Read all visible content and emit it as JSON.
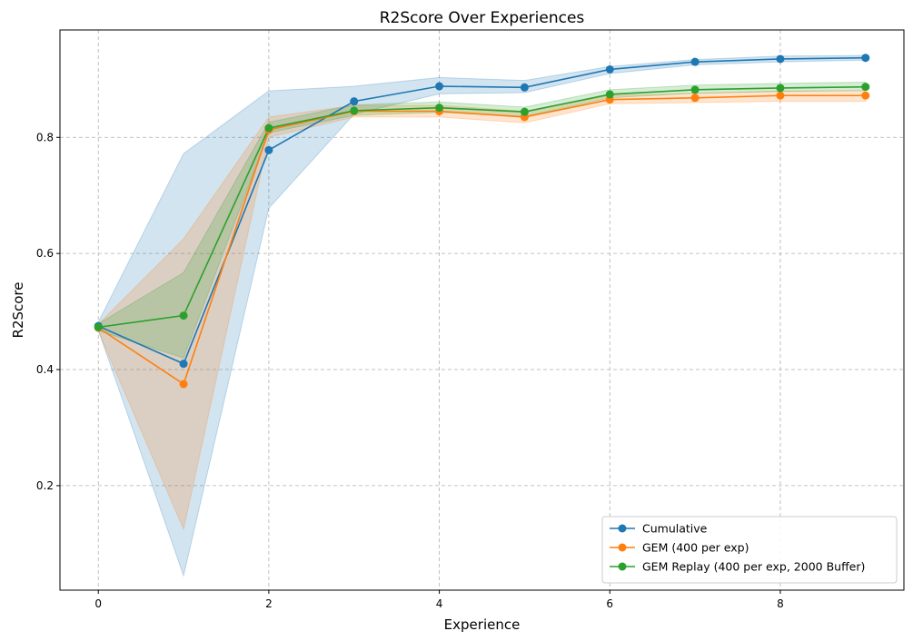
{
  "chart_data": {
    "type": "line",
    "title": "R2Score Over Experiences",
    "xlabel": "Experience",
    "ylabel": "R2Score",
    "x": [
      0,
      1,
      2,
      3,
      4,
      5,
      6,
      7,
      8,
      9
    ],
    "xlim": [
      -0.45,
      9.45
    ],
    "ylim": [
      0.02,
      0.985
    ],
    "xticks": [
      0,
      2,
      4,
      6,
      8
    ],
    "yticks": [
      0.2,
      0.4,
      0.6,
      0.8
    ],
    "xtick_labels": [
      "0",
      "2",
      "4",
      "6",
      "8"
    ],
    "ytick_labels": [
      "0.2",
      "0.4",
      "0.6",
      "0.8"
    ],
    "grid": true,
    "legend_position": "bottom-right",
    "series": [
      {
        "name": "Cumulative",
        "color": "#1f77b4",
        "values": [
          0.475,
          0.41,
          0.778,
          0.862,
          0.888,
          0.886,
          0.917,
          0.93,
          0.935,
          0.937
        ],
        "lower": [
          0.468,
          0.045,
          0.678,
          0.84,
          0.875,
          0.877,
          0.91,
          0.925,
          0.93,
          0.933
        ],
        "upper": [
          0.482,
          0.772,
          0.88,
          0.888,
          0.903,
          0.898,
          0.922,
          0.934,
          0.94,
          0.941
        ]
      },
      {
        "name": "GEM (400 per exp)",
        "color": "#ff7f0e",
        "values": [
          0.472,
          0.375,
          0.813,
          0.845,
          0.845,
          0.835,
          0.865,
          0.868,
          0.872,
          0.872
        ],
        "lower": [
          0.466,
          0.125,
          0.8,
          0.835,
          0.835,
          0.825,
          0.858,
          0.86,
          0.862,
          0.862
        ],
        "upper": [
          0.478,
          0.625,
          0.835,
          0.855,
          0.855,
          0.845,
          0.872,
          0.876,
          0.88,
          0.88
        ]
      },
      {
        "name": "GEM Replay (400 per exp, 2000 Buffer)",
        "color": "#2ca02c",
        "values": [
          0.473,
          0.493,
          0.816,
          0.846,
          0.851,
          0.844,
          0.874,
          0.882,
          0.885,
          0.887
        ],
        "lower": [
          0.467,
          0.42,
          0.808,
          0.838,
          0.843,
          0.836,
          0.868,
          0.876,
          0.879,
          0.881
        ],
        "upper": [
          0.479,
          0.567,
          0.826,
          0.856,
          0.861,
          0.852,
          0.882,
          0.89,
          0.893,
          0.895
        ]
      }
    ]
  }
}
